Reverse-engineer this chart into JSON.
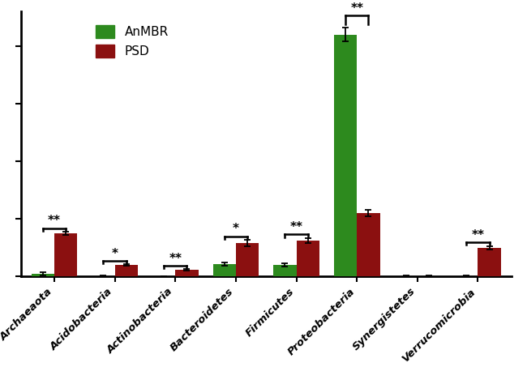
{
  "categories": [
    "Archaeaota",
    "Acidobacteria",
    "Actinobacteria",
    "Bacteroidetes",
    "Firmicutes",
    "Proteobacteria",
    "Synergistetes",
    "Verrucomicrobia"
  ],
  "anmbr_values": [
    0.5,
    0.0,
    0.0,
    2.2,
    2.0,
    42.0,
    0.1,
    0.1
  ],
  "psd_values": [
    7.5,
    2.0,
    1.2,
    5.8,
    6.2,
    11.0,
    0.1,
    5.0
  ],
  "anmbr_errors": [
    0.3,
    0.15,
    0.1,
    0.3,
    0.3,
    1.2,
    0.05,
    0.05
  ],
  "psd_errors": [
    0.3,
    0.2,
    0.15,
    0.5,
    0.4,
    0.6,
    0.05,
    0.3
  ],
  "anmbr_color": "#2d8a1e",
  "psd_color": "#8b1010",
  "significance": [
    "**",
    "*",
    "**",
    "*",
    "**",
    "**",
    "",
    "**"
  ],
  "ylim": [
    0,
    46
  ],
  "yticks": [
    0,
    10,
    20,
    30,
    40
  ],
  "bar_width": 0.38,
  "legend_labels": [
    "AnMBR",
    "PSD"
  ],
  "tick_label_fontsize": 9.5,
  "figwidth": 6.5,
  "figheight": 4.74
}
